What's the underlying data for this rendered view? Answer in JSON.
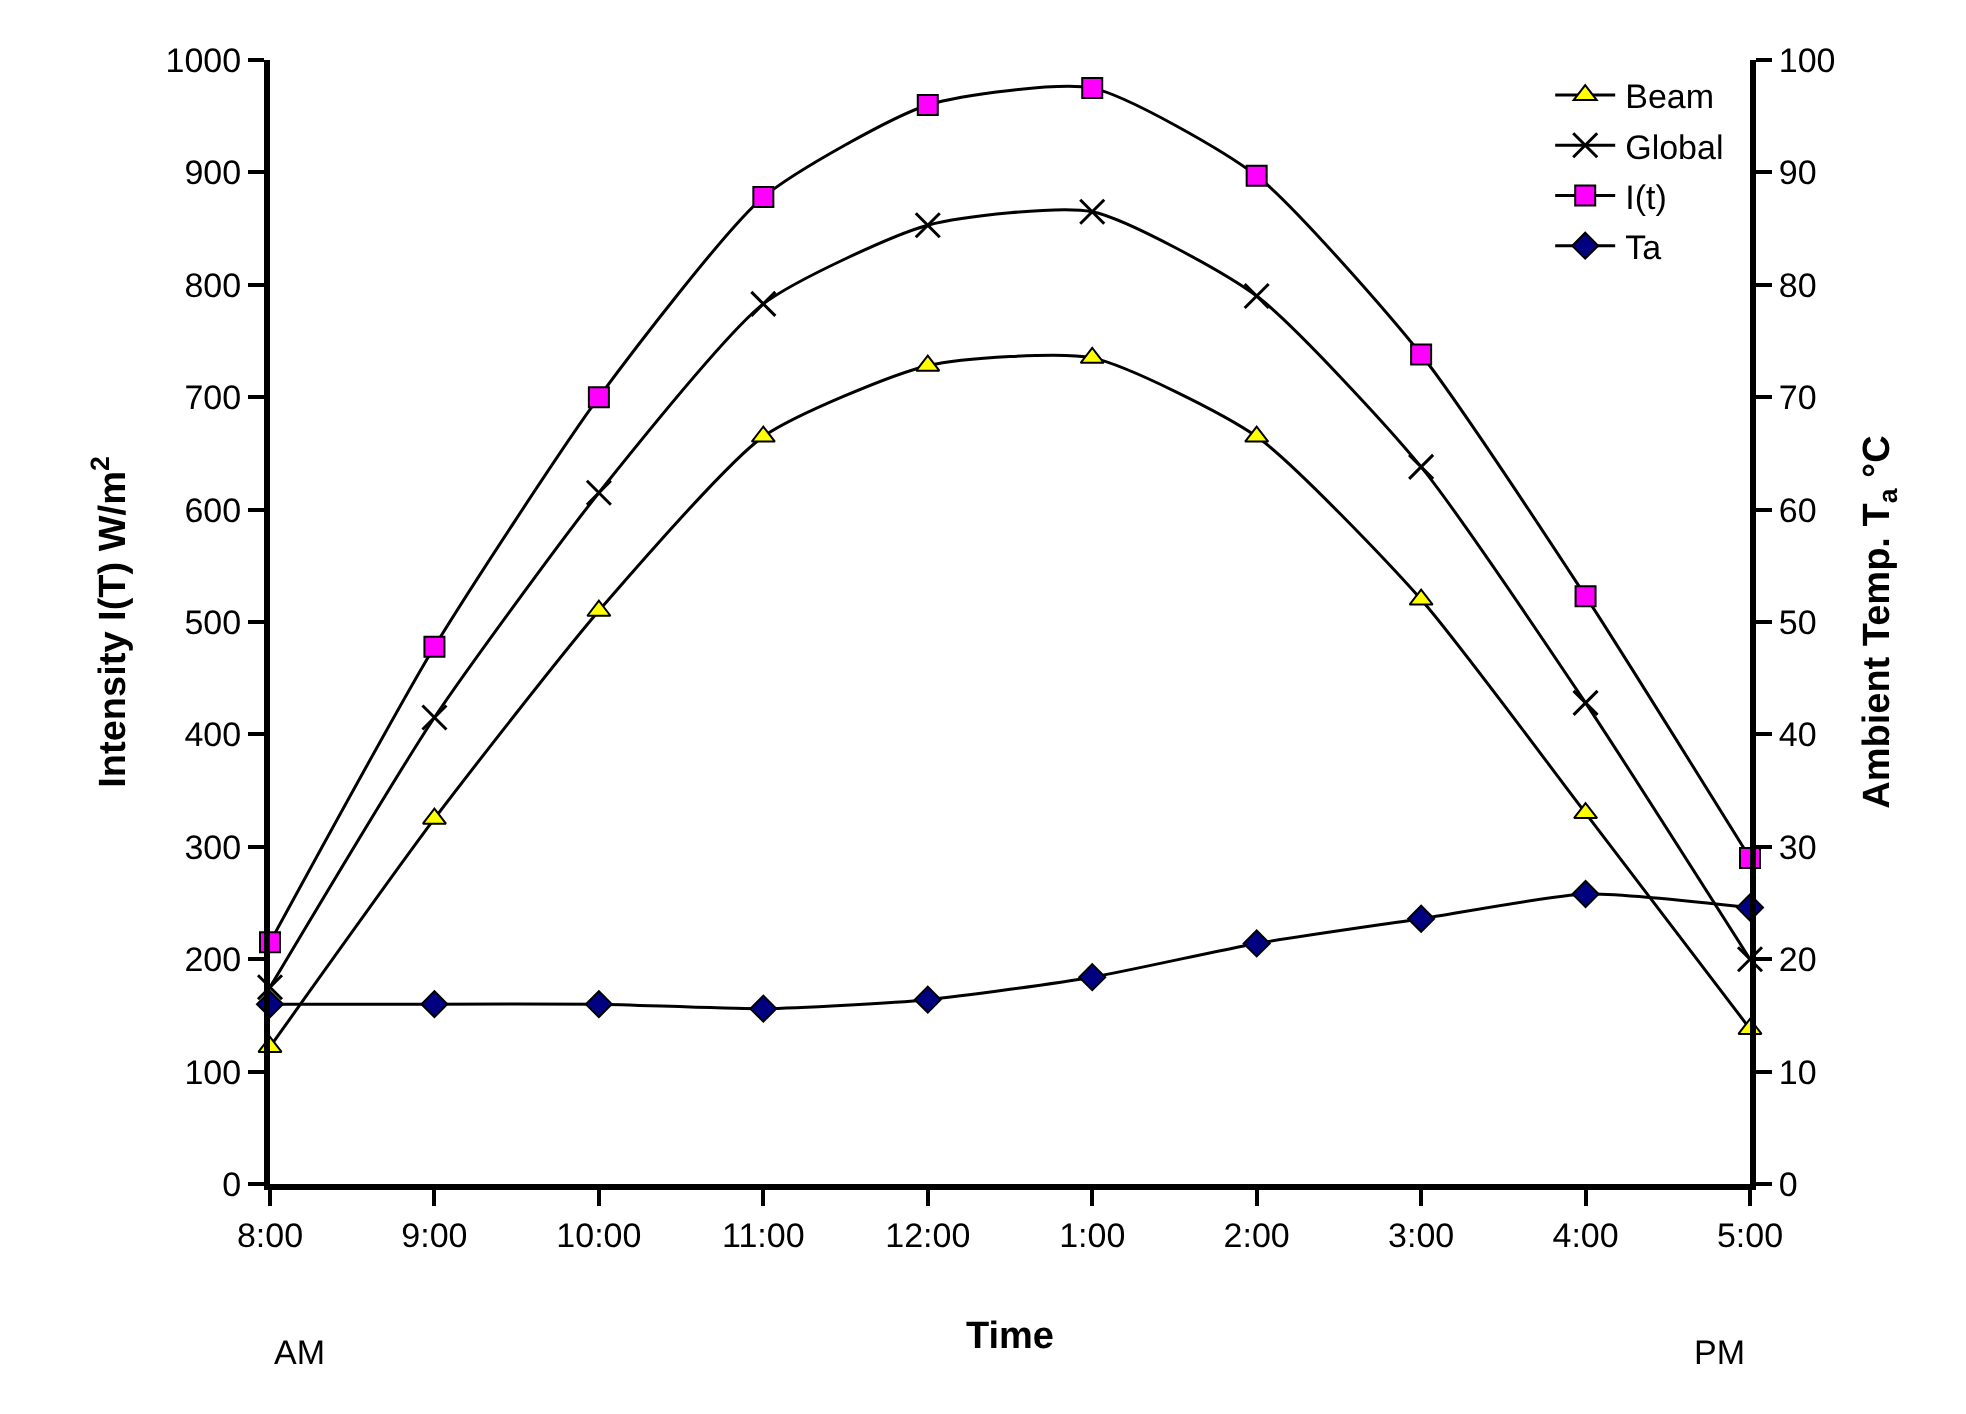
{
  "chart_data": {
    "type": "line",
    "xlabel": "Time",
    "ylabel": "Intensity I(T) W/m$^{2}$",
    "y2label": "Ambient Temp. T$_{a}$ °C",
    "categories": [
      "8:00",
      "9:00",
      "10:00",
      "11:00",
      "12:00",
      "1:00",
      "2:00",
      "3:00",
      "4:00",
      "5:00"
    ],
    "series": [
      {
        "name": "Beam",
        "color": "#ffff00",
        "marker": "triangle",
        "values": [
          122,
          325,
          510,
          665,
          728,
          735,
          665,
          520,
          330,
          138
        ]
      },
      {
        "name": "Global",
        "color": "#000000",
        "marker": "cross",
        "values": [
          175,
          415,
          615,
          783,
          853,
          865,
          790,
          638,
          428,
          200
        ]
      },
      {
        "name": "I(t)",
        "color": "#ff00ff",
        "marker": "square",
        "values": [
          215,
          478,
          700,
          878,
          960,
          975,
          897,
          738,
          523,
          290
        ]
      },
      {
        "name": "Ta",
        "color": "#000080",
        "marker": "diamond",
        "axis": "y2",
        "values": [
          16,
          16,
          16,
          15.6,
          16.4,
          18.4,
          21.4,
          23.6,
          25.8,
          24.6
        ]
      }
    ],
    "ylim": [
      0,
      1000
    ],
    "yticks": [
      0,
      100,
      200,
      300,
      400,
      500,
      600,
      700,
      800,
      900,
      1000
    ],
    "y2lim": [
      0,
      100
    ],
    "y2ticks": [
      0,
      10,
      20,
      30,
      40,
      50,
      60,
      70,
      80,
      90,
      100
    ],
    "annotations": [
      "AM",
      "PM"
    ],
    "legend": "top right",
    "line_style": "solid"
  }
}
